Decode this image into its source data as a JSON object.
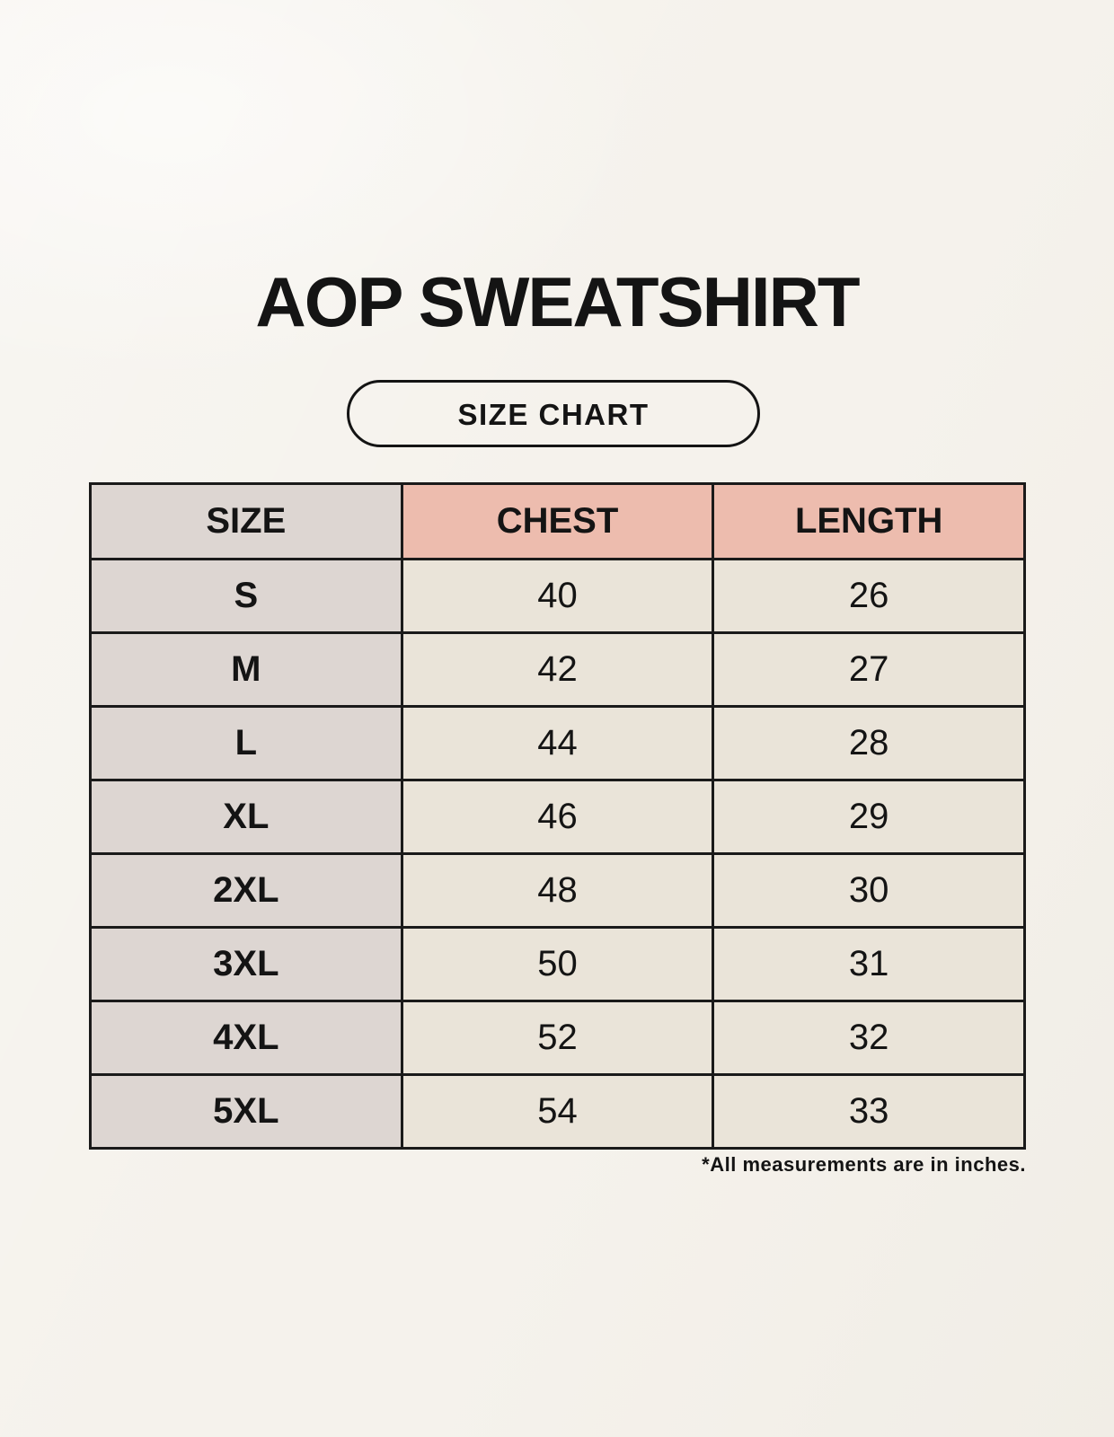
{
  "title": "AOP SWEATSHIRT",
  "badge_label": "SIZE CHART",
  "footnote": "*All measurements are in inches.",
  "colors": {
    "background": "#f5f2ec",
    "accent": "#edbcae",
    "gray_cell": "#ddd6d2",
    "cream_cell": "#eae4d9",
    "border": "#1a1a1a",
    "text": "#141414"
  },
  "chart_data": {
    "type": "table",
    "title": "AOP SWEATSHIRT",
    "subtitle": "SIZE CHART",
    "columns": [
      "SIZE",
      "CHEST",
      "LENGTH"
    ],
    "rows": [
      [
        "S",
        40,
        26
      ],
      [
        "M",
        42,
        27
      ],
      [
        "L",
        44,
        28
      ],
      [
        "XL",
        46,
        29
      ],
      [
        "2XL",
        48,
        30
      ],
      [
        "3XL",
        50,
        31
      ],
      [
        "4XL",
        52,
        32
      ],
      [
        "5XL",
        54,
        33
      ]
    ],
    "note": "*All measurements are in inches.",
    "layout_hints": {
      "header_accent_columns": [
        "CHEST",
        "LENGTH"
      ],
      "first_column_shaded": true,
      "grid": true
    }
  }
}
